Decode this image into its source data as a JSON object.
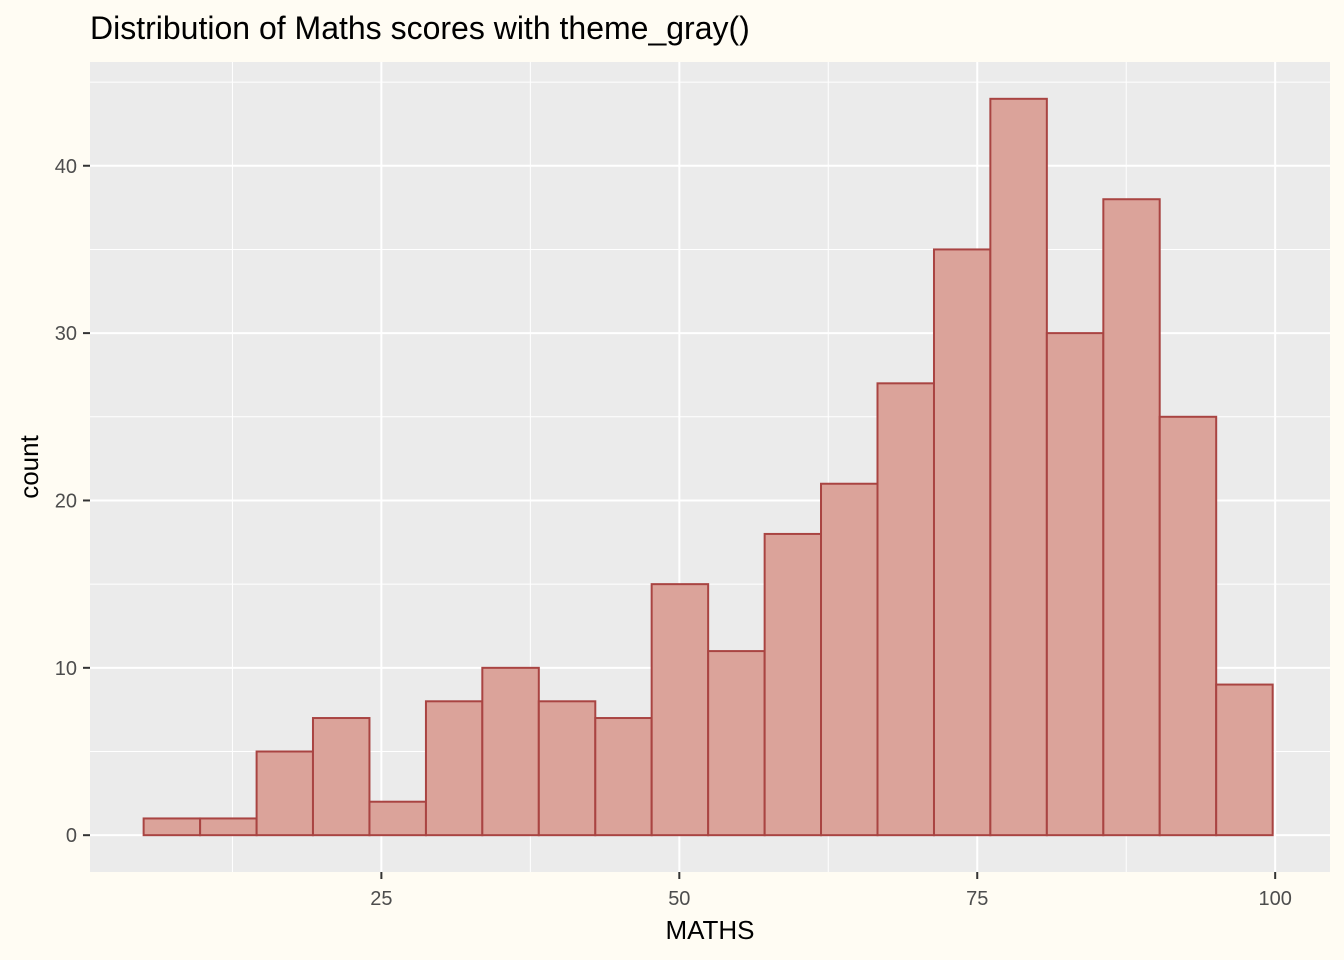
{
  "chart_data": {
    "type": "bar",
    "title": "Distribution of Maths scores with theme_gray()",
    "xlabel": "MATHS",
    "ylabel": "count",
    "xlim": [
      0.55,
      104.6
    ],
    "ylim": [
      -2.2,
      46.2
    ],
    "x_ticks": [
      25,
      50,
      75,
      100
    ],
    "y_ticks": [
      0,
      10,
      20,
      30,
      40
    ],
    "grid": true,
    "bins": [
      {
        "x0": 5.05,
        "x1": 9.79,
        "count": 1
      },
      {
        "x0": 9.79,
        "x1": 14.53,
        "count": 1
      },
      {
        "x0": 14.53,
        "x1": 19.26,
        "count": 5
      },
      {
        "x0": 19.26,
        "x1": 24.0,
        "count": 7
      },
      {
        "x0": 24.0,
        "x1": 28.74,
        "count": 2
      },
      {
        "x0": 28.74,
        "x1": 33.47,
        "count": 8
      },
      {
        "x0": 33.47,
        "x1": 38.21,
        "count": 10
      },
      {
        "x0": 38.21,
        "x1": 42.95,
        "count": 8
      },
      {
        "x0": 42.95,
        "x1": 47.68,
        "count": 7
      },
      {
        "x0": 47.68,
        "x1": 52.42,
        "count": 15
      },
      {
        "x0": 52.42,
        "x1": 57.16,
        "count": 11
      },
      {
        "x0": 57.16,
        "x1": 61.89,
        "count": 18
      },
      {
        "x0": 61.89,
        "x1": 66.63,
        "count": 21
      },
      {
        "x0": 66.63,
        "x1": 71.37,
        "count": 27
      },
      {
        "x0": 71.37,
        "x1": 76.1,
        "count": 35
      },
      {
        "x0": 76.1,
        "x1": 80.84,
        "count": 44
      },
      {
        "x0": 80.84,
        "x1": 85.58,
        "count": 30
      },
      {
        "x0": 85.58,
        "x1": 90.31,
        "count": 38
      },
      {
        "x0": 90.31,
        "x1": 95.05,
        "count": 25
      },
      {
        "x0": 95.05,
        "x1": 99.79,
        "count": 9
      }
    ],
    "colors": {
      "bar_fill": "#DBA39A",
      "bar_stroke": "#A94442",
      "panel": "#EBEBEB",
      "grid": "#FFFFFF",
      "background": "#FFFCF3"
    }
  }
}
